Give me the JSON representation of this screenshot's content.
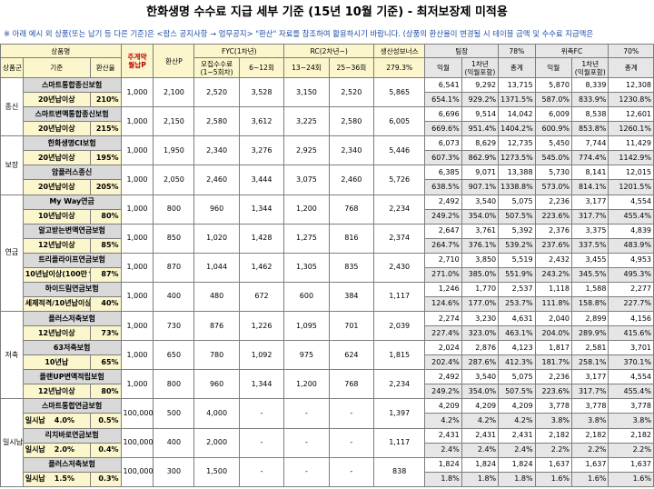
{
  "title": "한화생명 수수료 지급 세부 기준 (15년 10월 기준) - 최저보장제 미적용",
  "note": "※ 아래 예시 외 상품(또는 납기 등 다른 기준)은 <팜스 공지사항 → 업무공지> \"환산\" 자료를 참조하여 활용하시기 바랍니다. (상품의 환산율이 변경될 시 테이블 금액 및 수수료 지급액은",
  "colors": {
    "header_yellow": "#fbf6cc",
    "header_gray": "#e6e6e6",
    "product_gray": "#d9d9d9",
    "note_blue": "#1f4fa8",
    "accent_red": "#c00000"
  },
  "header": {
    "product_group": "상품명",
    "category": "상품군",
    "criteria": "기준",
    "conversion_rate": "환산율",
    "premium_line1": "주계약",
    "premium_line2": "월납P",
    "converted_p": "환산P",
    "fyc_group": "FYC(1차년)",
    "fyc_m1_5_line1": "모집수수료",
    "fyc_m1_5_line2": "(1~5회차)",
    "fyc_m6_12": "6~12회",
    "rc_group": "RC(2차년~)",
    "rc_m13_24": "13~24회",
    "rc_m25_36": "25~36회",
    "bonus": "생산성보너스",
    "bonus_rate": "279.3%",
    "team_leader": "팀장",
    "tl_rate": "78%",
    "consignment": "위촉FC",
    "fc_rate": "70%",
    "monthly": "익월",
    "year1_line1": "1차년",
    "year1_line2": "(익월포함)",
    "total": "총계"
  },
  "categories": [
    {
      "name": "종신",
      "products": [
        {
          "name": "스마트통합종신보험",
          "criteria": "20년납이상",
          "rate": "210%",
          "premium": "1,000",
          "conv": "2,100",
          "fyc1": "2,520",
          "fyc2": "3,528",
          "rc1": "3,150",
          "rc2": "2,520",
          "bonus": "5,865",
          "tl": [
            "6,541",
            "9,292",
            "13,715"
          ],
          "tl_pct": [
            "654.1%",
            "929.2%",
            "1371.5%"
          ],
          "fc": [
            "5,870",
            "8,339",
            "12,308"
          ],
          "fc_pct": [
            "587.0%",
            "833.9%",
            "1230.8%"
          ]
        },
        {
          "name": "스마트변액통합종신보험",
          "criteria": "20년납이상",
          "rate": "215%",
          "premium": "1,000",
          "conv": "2,150",
          "fyc1": "2,580",
          "fyc2": "3,612",
          "rc1": "3,225",
          "rc2": "2,580",
          "bonus": "6,005",
          "tl": [
            "6,696",
            "9,514",
            "14,042"
          ],
          "tl_pct": [
            "669.6%",
            "951.4%",
            "1404.2%"
          ],
          "fc": [
            "6,009",
            "8,538",
            "12,601"
          ],
          "fc_pct": [
            "600.9%",
            "853.8%",
            "1260.1%"
          ]
        }
      ]
    },
    {
      "name": "보장",
      "products": [
        {
          "name": "한화생명CI보험",
          "criteria": "20년납이상",
          "rate": "195%",
          "premium": "1,000",
          "conv": "1,950",
          "fyc1": "2,340",
          "fyc2": "3,276",
          "rc1": "2,925",
          "rc2": "2,340",
          "bonus": "5,446",
          "tl": [
            "6,073",
            "8,629",
            "12,735"
          ],
          "tl_pct": [
            "607.3%",
            "862.9%",
            "1273.5%"
          ],
          "fc": [
            "5,450",
            "7,744",
            "11,429"
          ],
          "fc_pct": [
            "545.0%",
            "774.4%",
            "1142.9%"
          ]
        },
        {
          "name": "암플러스종신",
          "criteria": "20년납이상",
          "rate": "205%",
          "premium": "1,000",
          "conv": "2,050",
          "fyc1": "2,460",
          "fyc2": "3,444",
          "rc1": "3,075",
          "rc2": "2,460",
          "bonus": "5,726",
          "tl": [
            "6,385",
            "9,071",
            "13,388"
          ],
          "tl_pct": [
            "638.5%",
            "907.1%",
            "1338.8%"
          ],
          "fc": [
            "5,730",
            "8,141",
            "12,015"
          ],
          "fc_pct": [
            "573.0%",
            "814.1%",
            "1201.5%"
          ]
        }
      ]
    },
    {
      "name": "연금",
      "products": [
        {
          "name": "My Way연금",
          "criteria": "10년납이상",
          "rate": "80%",
          "premium": "1,000",
          "conv": "800",
          "fyc1": "960",
          "fyc2": "1,344",
          "rc1": "1,200",
          "rc2": "768",
          "bonus": "2,234",
          "tl": [
            "2,492",
            "3,540",
            "5,075"
          ],
          "tl_pct": [
            "249.2%",
            "354.0%",
            "507.5%"
          ],
          "fc": [
            "2,236",
            "3,177",
            "4,554"
          ],
          "fc_pct": [
            "223.6%",
            "317.7%",
            "455.4%"
          ]
        },
        {
          "name": "알고받는변액연금보험",
          "criteria": "12년납이상",
          "rate": "85%",
          "premium": "1,000",
          "conv": "850",
          "fyc1": "1,020",
          "fyc2": "1,428",
          "rc1": "1,275",
          "rc2": "816",
          "bonus": "2,374",
          "tl": [
            "2,647",
            "3,761",
            "5,392"
          ],
          "tl_pct": [
            "264.7%",
            "376.1%",
            "539.2%"
          ],
          "fc": [
            "2,376",
            "3,375",
            "4,839"
          ],
          "fc_pct": [
            "237.6%",
            "337.5%",
            "483.9%"
          ]
        },
        {
          "name": "트리플라이프연금보험",
          "criteria": "10년납이상(100만↑)",
          "rate": "87%",
          "premium": "1,000",
          "conv": "870",
          "fyc1": "1,044",
          "fyc2": "1,462",
          "rc1": "1,305",
          "rc2": "835",
          "bonus": "2,430",
          "tl": [
            "2,710",
            "3,850",
            "5,519"
          ],
          "tl_pct": [
            "271.0%",
            "385.0%",
            "551.9%"
          ],
          "fc": [
            "2,432",
            "3,455",
            "4,953"
          ],
          "fc_pct": [
            "243.2%",
            "345.5%",
            "495.3%"
          ]
        },
        {
          "name": "하이드림연금보험",
          "criteria": "세제적격/10년납이상",
          "rate": "40%",
          "premium": "1,000",
          "conv": "400",
          "fyc1": "480",
          "fyc2": "672",
          "rc1": "600",
          "rc2": "384",
          "bonus": "1,117",
          "tl": [
            "1,246",
            "1,770",
            "2,537"
          ],
          "tl_pct": [
            "124.6%",
            "177.0%",
            "253.7%"
          ],
          "fc": [
            "1,118",
            "1,588",
            "2,277"
          ],
          "fc_pct": [
            "111.8%",
            "158.8%",
            "227.7%"
          ]
        }
      ]
    },
    {
      "name": "저축",
      "products": [
        {
          "name": "플러스저축보험",
          "criteria": "12년납이상",
          "rate": "73%",
          "premium": "1,000",
          "conv": "730",
          "fyc1": "876",
          "fyc2": "1,226",
          "rc1": "1,095",
          "rc2": "701",
          "bonus": "2,039",
          "tl": [
            "2,274",
            "3,230",
            "4,631"
          ],
          "tl_pct": [
            "227.4%",
            "323.0%",
            "463.1%"
          ],
          "fc": [
            "2,040",
            "2,899",
            "4,156"
          ],
          "fc_pct": [
            "204.0%",
            "289.9%",
            "415.6%"
          ]
        },
        {
          "name": "63저축보험",
          "criteria": "10년납",
          "rate": "65%",
          "premium": "1,000",
          "conv": "650",
          "fyc1": "780",
          "fyc2": "1,092",
          "rc1": "975",
          "rc2": "624",
          "bonus": "1,815",
          "tl": [
            "2,024",
            "2,876",
            "4,123"
          ],
          "tl_pct": [
            "202.4%",
            "287.6%",
            "412.3%"
          ],
          "fc": [
            "1,817",
            "2,581",
            "3,701"
          ],
          "fc_pct": [
            "181.7%",
            "258.1%",
            "370.1%"
          ]
        },
        {
          "name": "플랜UP변액적립보험",
          "criteria": "12년납이상",
          "rate": "80%",
          "premium": "1,000",
          "conv": "800",
          "fyc1": "960",
          "fyc2": "1,344",
          "rc1": "1,200",
          "rc2": "768",
          "bonus": "2,234",
          "tl": [
            "2,492",
            "3,540",
            "5,075"
          ],
          "tl_pct": [
            "249.2%",
            "354.0%",
            "507.5%"
          ],
          "fc": [
            "2,236",
            "3,177",
            "4,554"
          ],
          "fc_pct": [
            "223.6%",
            "317.7%",
            "455.4%"
          ]
        }
      ]
    },
    {
      "name": "일시납",
      "products": [
        {
          "name": "스마트통합연금보험",
          "criteria": "일시납",
          "rate_a": "4.0%",
          "rate": "0.5%",
          "premium": "100,000",
          "conv": "500",
          "fyc1": "4,000",
          "fyc2": "-",
          "rc1": "-",
          "rc2": "-",
          "bonus": "1,397",
          "tl": [
            "4,209",
            "4,209",
            "4,209"
          ],
          "tl_pct": [
            "4.2%",
            "4.2%",
            "4.2%"
          ],
          "fc": [
            "3,778",
            "3,778",
            "3,778"
          ],
          "fc_pct": [
            "3.8%",
            "3.8%",
            "3.8%"
          ]
        },
        {
          "name": "리치바로연금보험",
          "criteria": "일시납",
          "rate_a": "2.0%",
          "rate": "0.4%",
          "premium": "100,000",
          "conv": "400",
          "fyc1": "2,000",
          "fyc2": "-",
          "rc1": "-",
          "rc2": "-",
          "bonus": "1,117",
          "tl": [
            "2,431",
            "2,431",
            "2,431"
          ],
          "tl_pct": [
            "2.4%",
            "2.4%",
            "2.4%"
          ],
          "fc": [
            "2,182",
            "2,182",
            "2,182"
          ],
          "fc_pct": [
            "2.2%",
            "2.2%",
            "2.2%"
          ]
        },
        {
          "name": "플러스저축보험",
          "criteria": "일시납",
          "rate_a": "1.5%",
          "rate": "0.3%",
          "premium": "100,000",
          "conv": "300",
          "fyc1": "1,500",
          "fyc2": "-",
          "rc1": "-",
          "rc2": "-",
          "bonus": "838",
          "tl": [
            "1,824",
            "1,824",
            "1,824"
          ],
          "tl_pct": [
            "1.8%",
            "1.8%",
            "1.8%"
          ],
          "fc": [
            "1,637",
            "1,637",
            "1,637"
          ],
          "fc_pct": [
            "1.6%",
            "1.6%",
            "1.6%"
          ]
        }
      ]
    }
  ]
}
